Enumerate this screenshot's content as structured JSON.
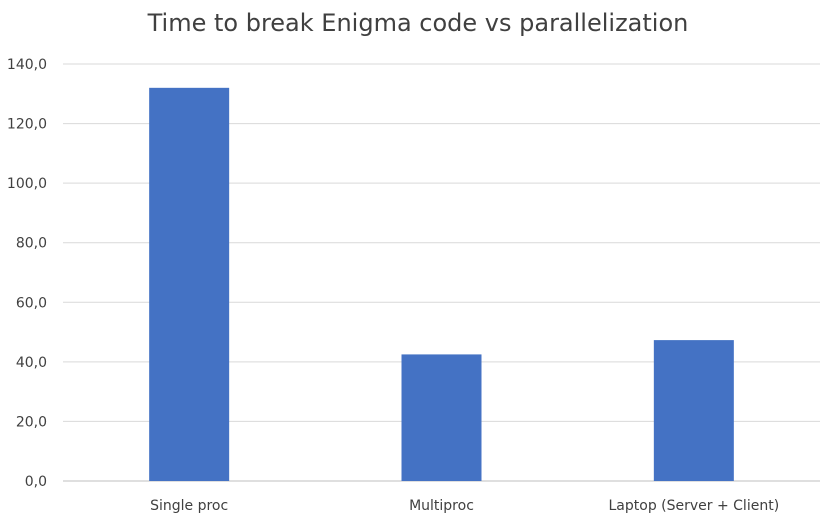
{
  "chart_data": {
    "type": "bar",
    "title": "Time to break Enigma code vs parallelization",
    "xlabel": "",
    "ylabel": "",
    "categories": [
      "Single proc",
      "Multiproc",
      "Laptop (Server + Client)"
    ],
    "values": [
      132.0,
      42.5,
      47.3
    ],
    "ylim": [
      0,
      140
    ],
    "yticks": [
      "0,0",
      "20,0",
      "40,0",
      "60,0",
      "80,0",
      "100,0",
      "120,0",
      "140,0"
    ],
    "ytick_values": [
      0,
      20,
      40,
      60,
      80,
      100,
      120,
      140
    ],
    "grid": true,
    "legend": "none",
    "bar_color": "#4472C4"
  }
}
